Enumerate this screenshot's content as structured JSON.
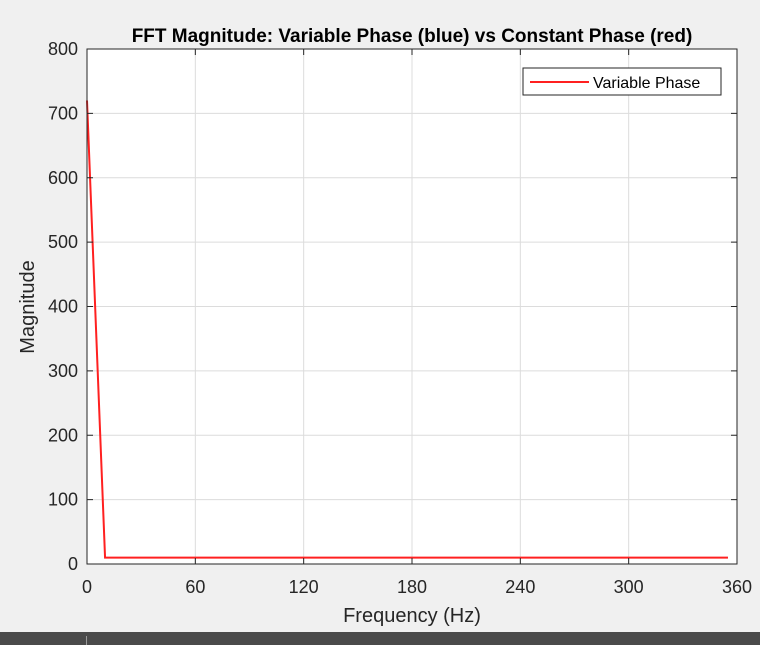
{
  "chart_data": {
    "type": "line",
    "title": "FFT Magnitude: Variable Phase (blue) vs Constant Phase (red)",
    "xlabel": "Frequency (Hz)",
    "ylabel": "Magnitude",
    "xlim": [
      0,
      360
    ],
    "ylim": [
      0,
      800
    ],
    "xticks": [
      0,
      60,
      120,
      180,
      240,
      300,
      360
    ],
    "yticks": [
      0,
      100,
      200,
      300,
      400,
      500,
      600,
      700,
      800
    ],
    "grid": true,
    "legend_position": "top-right",
    "series": [
      {
        "name": "Variable Phase",
        "color": "#ff2020",
        "x": [
          0,
          10,
          355
        ],
        "y": [
          720,
          10,
          10
        ]
      }
    ]
  }
}
